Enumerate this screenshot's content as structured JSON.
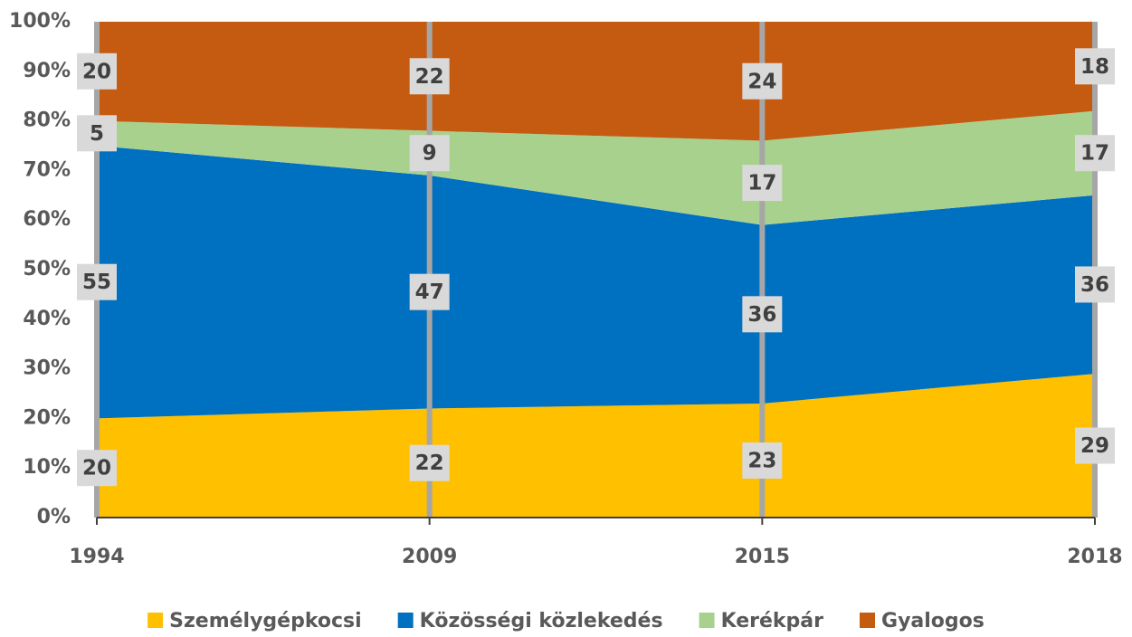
{
  "chart_data": {
    "type": "stacked_area",
    "categories": [
      "1994",
      "2009",
      "2015",
      "2018"
    ],
    "series": [
      {
        "name": "Személygépkocsi",
        "color": "#FFC000",
        "values": [
          20,
          22,
          23,
          29
        ]
      },
      {
        "name": "Közösségi közlekedés",
        "color": "#0070C0",
        "values": [
          55,
          47,
          36,
          36
        ]
      },
      {
        "name": "Kerékpár",
        "color": "#A9D18E",
        "values": [
          5,
          9,
          17,
          17
        ]
      },
      {
        "name": "Gyalogos",
        "color": "#C55A11",
        "values": [
          20,
          22,
          24,
          18
        ]
      }
    ],
    "ylim": [
      0,
      100
    ],
    "yticks": [
      {
        "value": 0,
        "label": "0%"
      },
      {
        "value": 10,
        "label": "10%"
      },
      {
        "value": 20,
        "label": "20%"
      },
      {
        "value": 30,
        "label": "30%"
      },
      {
        "value": 40,
        "label": "40%"
      },
      {
        "value": 50,
        "label": "50%"
      },
      {
        "value": 60,
        "label": "60%"
      },
      {
        "value": 70,
        "label": "70%"
      },
      {
        "value": 80,
        "label": "80%"
      },
      {
        "value": 90,
        "label": "90%"
      },
      {
        "value": 100,
        "label": "100%"
      }
    ],
    "legend": "bottom"
  }
}
